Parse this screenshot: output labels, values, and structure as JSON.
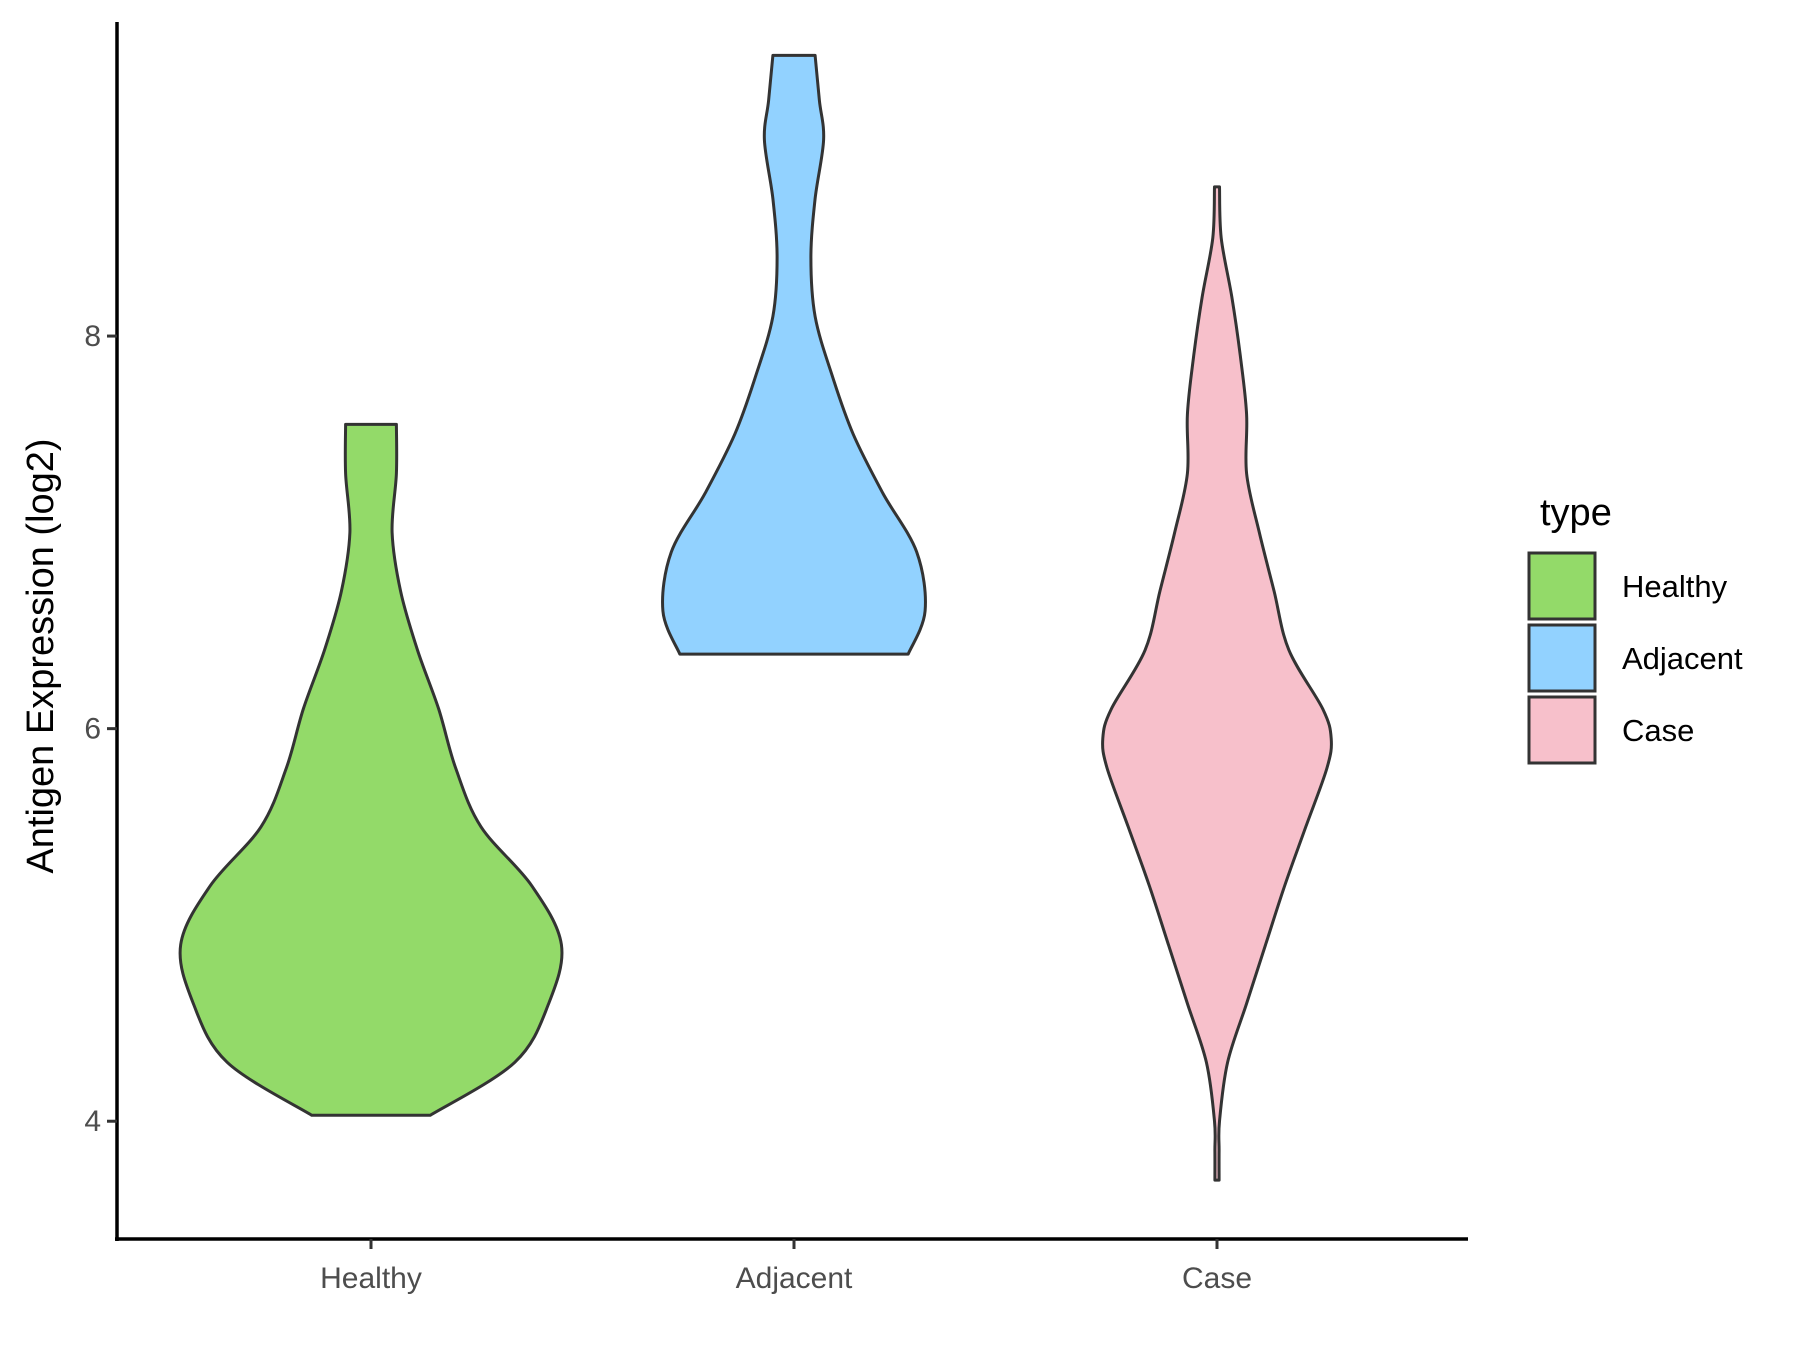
{
  "chart_data": {
    "type": "violin",
    "xlabel": "",
    "ylabel": "Antigen Expression (log2)",
    "ylim": [
      3.4,
      9.6
    ],
    "yticks": [
      4,
      6,
      8
    ],
    "categories": [
      "Healthy",
      "Adjacent",
      "Case"
    ],
    "colors": {
      "Healthy": "#93da69",
      "Adjacent": "#92d2ff",
      "Case": "#f7c0cb",
      "outline": "#333333",
      "axis": "#000000"
    },
    "legend": {
      "title": "type",
      "position": "right",
      "entries": [
        "Healthy",
        "Adjacent",
        "Case"
      ]
    },
    "series": [
      {
        "name": "Healthy",
        "min": 4.03,
        "max": 7.55,
        "profile": [
          [
            4.03,
            0.14
          ],
          [
            4.3,
            0.34
          ],
          [
            4.6,
            0.42
          ],
          [
            4.9,
            0.45
          ],
          [
            5.2,
            0.38
          ],
          [
            5.5,
            0.26
          ],
          [
            5.8,
            0.2
          ],
          [
            6.1,
            0.16
          ],
          [
            6.4,
            0.11
          ],
          [
            6.7,
            0.07
          ],
          [
            7.0,
            0.05
          ],
          [
            7.3,
            0.06
          ],
          [
            7.55,
            0.06
          ]
        ]
      },
      {
        "name": "Adjacent",
        "min": 6.38,
        "max": 9.43,
        "profile": [
          [
            6.38,
            0.27
          ],
          [
            6.6,
            0.31
          ],
          [
            6.9,
            0.29
          ],
          [
            7.2,
            0.21
          ],
          [
            7.5,
            0.14
          ],
          [
            7.8,
            0.09
          ],
          [
            8.1,
            0.05
          ],
          [
            8.4,
            0.04
          ],
          [
            8.7,
            0.05
          ],
          [
            9.0,
            0.07
          ],
          [
            9.2,
            0.06
          ],
          [
            9.43,
            0.05
          ]
        ]
      },
      {
        "name": "Case",
        "min": 3.7,
        "max": 8.76,
        "profile": [
          [
            3.7,
            0.005
          ],
          [
            3.85,
            0.005
          ],
          [
            4.0,
            0.006
          ],
          [
            4.3,
            0.025
          ],
          [
            4.6,
            0.07
          ],
          [
            4.9,
            0.115
          ],
          [
            5.2,
            0.16
          ],
          [
            5.5,
            0.21
          ],
          [
            5.8,
            0.26
          ],
          [
            5.95,
            0.27
          ],
          [
            6.1,
            0.25
          ],
          [
            6.4,
            0.17
          ],
          [
            6.7,
            0.135
          ],
          [
            7.0,
            0.1
          ],
          [
            7.3,
            0.07
          ],
          [
            7.6,
            0.07
          ],
          [
            7.9,
            0.055
          ],
          [
            8.2,
            0.035
          ],
          [
            8.5,
            0.01
          ],
          [
            8.76,
            0.006
          ]
        ]
      }
    ]
  }
}
